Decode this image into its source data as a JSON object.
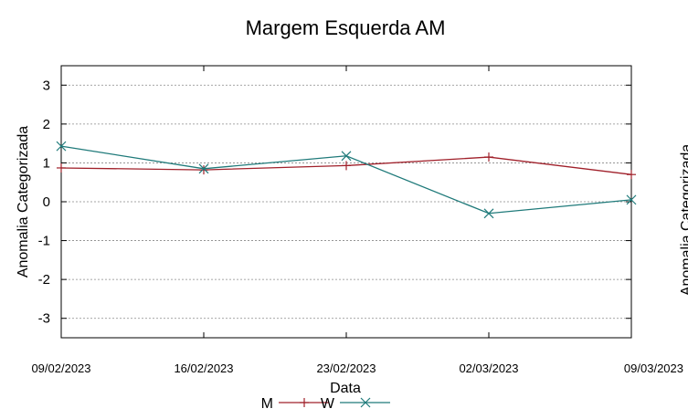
{
  "chart_data": {
    "type": "line",
    "title": "Margem Esquerda AM",
    "xlabel": "Data",
    "ylabel": "Anomalia Categorizada",
    "right_ylabel_partial": "Anomalia Categorizada",
    "categories": [
      "09/02/2023",
      "16/02/2023",
      "23/02/2023",
      "02/03/2023",
      "09/03/2023"
    ],
    "yticks": [
      3,
      2,
      1,
      0,
      -1,
      -2,
      -3
    ],
    "ylim": [
      -3.5,
      3.5
    ],
    "grid": true,
    "legend_position": "bottom-center",
    "series": [
      {
        "name": "M",
        "color": "#a0202a",
        "marker": "plus",
        "values": [
          0.87,
          0.82,
          0.93,
          1.15,
          0.7
        ]
      },
      {
        "name": "W",
        "color": "#1f7a7a",
        "marker": "x",
        "values": [
          1.43,
          0.85,
          1.18,
          -0.3,
          0.05
        ]
      }
    ]
  }
}
